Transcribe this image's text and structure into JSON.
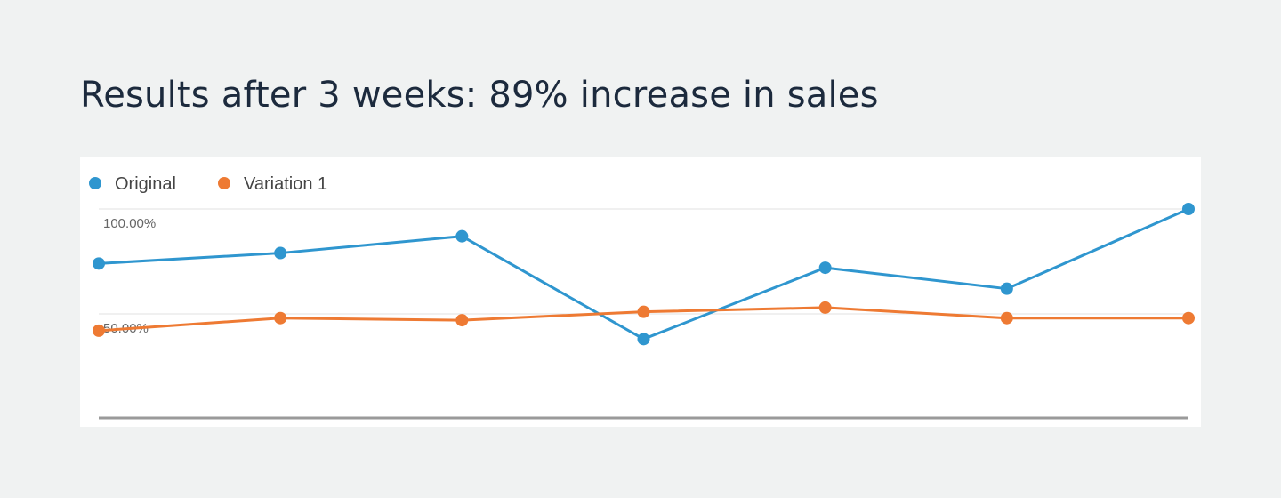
{
  "headline": "Results after 3 weeks: 89% increase in sales",
  "colors": {
    "background": "#f0f2f2",
    "headline": "#1c2a3d",
    "original": "#2f96cf",
    "variation": "#ee7a33"
  },
  "chart_data": {
    "type": "line",
    "title": "",
    "xlabel": "",
    "ylabel": "",
    "x": [
      1,
      2,
      3,
      4,
      5,
      6,
      7
    ],
    "ylim": [
      0,
      100
    ],
    "ytick_labels": [
      "100.00%",
      "50.00%"
    ],
    "yticks": [
      100,
      50
    ],
    "grid": true,
    "legend_position": "top-left",
    "series": [
      {
        "name": "Original",
        "color": "#2f96cf",
        "values": [
          74,
          79,
          87,
          38,
          72,
          62,
          100
        ]
      },
      {
        "name": "Variation 1",
        "color": "#ee7a33",
        "values": [
          42,
          48,
          47,
          51,
          53,
          48,
          48
        ]
      }
    ]
  }
}
